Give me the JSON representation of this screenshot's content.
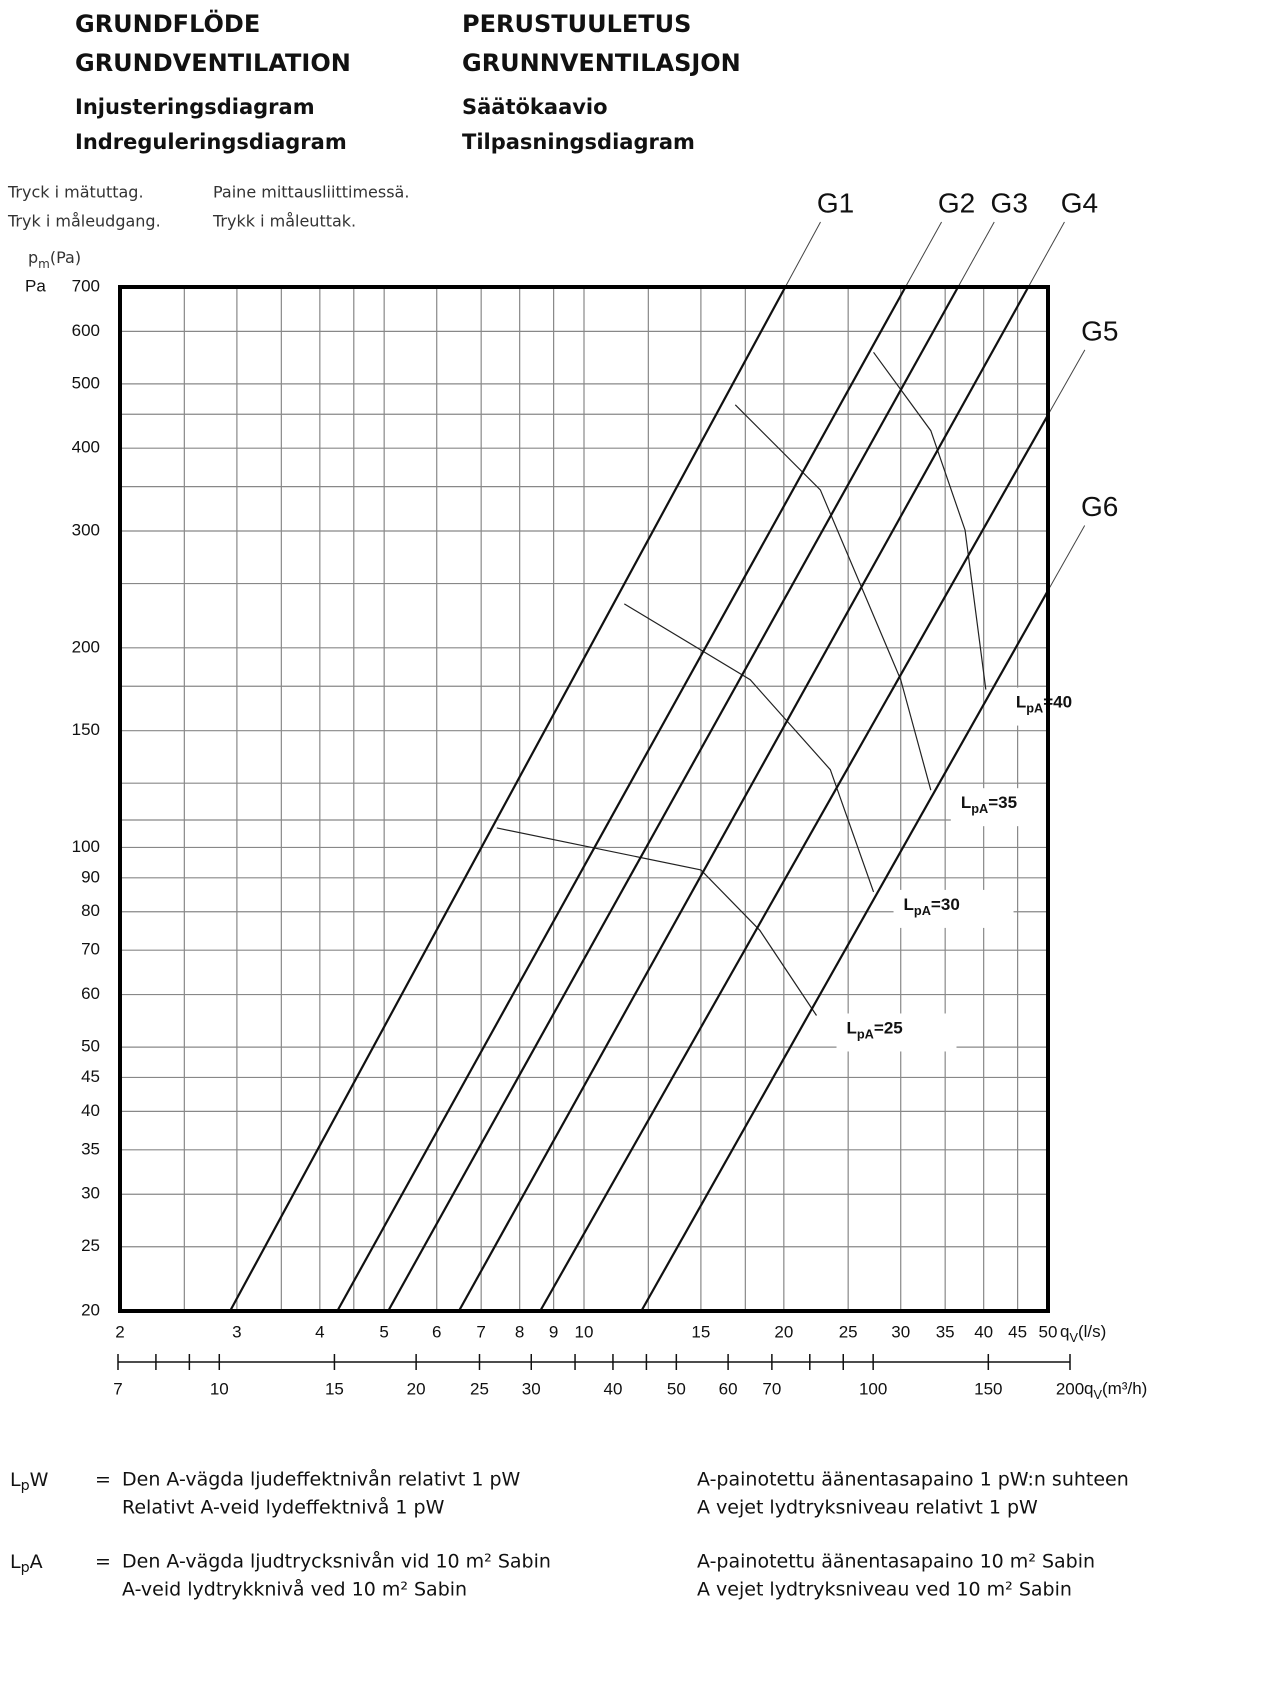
{
  "header": {
    "left": [
      "GRUNDFLÖDE",
      "GRUNDVENTILATION"
    ],
    "left_sub": [
      "Injusteringsdiagram",
      "Indreguleringsdiagram"
    ],
    "right": [
      "PERUSTUULETUS",
      "GRUNNVENTILASJON"
    ],
    "right_sub": [
      "Säätökaavio",
      "Tilpasningsdiagram"
    ]
  },
  "chart_data": {
    "type": "line",
    "log_x": true,
    "log_y": true,
    "grid": true,
    "y_label_lines": [
      "Tryck i mätuttag.",
      "Tryk i måleudgang."
    ],
    "y_label_lines_2": [
      "Paine mittausliittimessä.",
      "Trykk i måleuttak."
    ],
    "y_unit_symbol": "p",
    "y_unit_sub": "m",
    "y_unit": "(Pa)",
    "y_unit_short": "Pa",
    "x_label_symbol": "q",
    "x_label_sub": "V",
    "x_label_unit": "(l/s)",
    "x2_label_unit": "(m³/h)",
    "xlim": [
      2,
      50
    ],
    "ylim": [
      20,
      700
    ],
    "xticks": [
      2,
      3,
      4,
      5,
      6,
      7,
      8,
      9,
      10,
      15,
      20,
      25,
      30,
      35,
      40,
      45,
      50
    ],
    "yticks": [
      20,
      25,
      30,
      35,
      40,
      45,
      50,
      60,
      70,
      80,
      90,
      100,
      150,
      200,
      300,
      400,
      500,
      600,
      700
    ],
    "x_minor_grid": [
      2.5,
      3.5,
      4.5,
      12.5,
      17.5
    ],
    "y_minor_grid": [
      110,
      125,
      175,
      250,
      350,
      450
    ],
    "x2lim": [
      7,
      200
    ],
    "x2ticks": [
      7,
      10,
      15,
      20,
      25,
      30,
      40,
      50,
      60,
      70,
      100,
      150,
      200
    ],
    "x2_minor_ticks": [
      8,
      9,
      35,
      45,
      80,
      90
    ],
    "series": [
      {
        "name": "G1",
        "color": "#111111",
        "x": [
          2.93,
          20.1
        ],
        "values": [
          20,
          700
        ]
      },
      {
        "name": "G2",
        "color": "#111111",
        "x": [
          4.25,
          30.5
        ],
        "values": [
          20,
          700
        ]
      },
      {
        "name": "G3",
        "color": "#111111",
        "x": [
          5.07,
          36.6
        ],
        "values": [
          20,
          700
        ]
      },
      {
        "name": "G4",
        "color": "#111111",
        "x": [
          6.48,
          46.7
        ],
        "values": [
          20,
          700
        ]
      },
      {
        "name": "G5",
        "color": "#111111",
        "x": [
          8.59,
          50
        ],
        "values": [
          20,
          449
        ]
      },
      {
        "name": "G6",
        "color": "#111111",
        "x": [
          12.2,
          50
        ],
        "values": [
          20,
          244
        ]
      }
    ],
    "level_curves": {
      "symbol": "L",
      "subscript": "pA",
      "sign": "=",
      "curves": [
        {
          "level": 25,
          "x": [
            7.39,
            15.0,
            18.4,
            22.4
          ],
          "values": [
            107,
            92.5,
            75,
            55.8
          ]
        },
        {
          "level": 30,
          "x": [
            11.5,
            17.8,
            23.5,
            27.3
          ],
          "values": [
            233,
            179,
            131,
            85.7
          ]
        },
        {
          "level": 35,
          "x": [
            16.9,
            22.7,
            30.0,
            33.3
          ],
          "values": [
            465,
            346,
            179,
            122
          ]
        },
        {
          "level": 40,
          "x": [
            27.3,
            33.3,
            37.5,
            40.3
          ],
          "values": [
            558,
            425,
            301,
            173
          ]
        }
      ]
    }
  },
  "footer": [
    {
      "symbol": "L",
      "sub": "p",
      "suffix": "W",
      "sign": "=",
      "left": [
        "Den A-vägda ljudeffektnivån relativt 1 pW",
        "Relativt A-veid lydeffektnivå 1 pW"
      ],
      "right": [
        "A-painotettu äänentasapaino 1 pW:n suhteen",
        "A vejet lydtryksniveau relativt 1 pW"
      ]
    },
    {
      "symbol": "L",
      "sub": "p",
      "suffix": "A",
      "sign": "=",
      "left": [
        "Den A-vägda ljudtrycksnivån vid 10 m² Sabin",
        "A-veid lydtrykknivå ved 10 m² Sabin"
      ],
      "right": [
        "A-painotettu äänentasapaino 10 m² Sabin",
        "A vejet lydtryksniveau ved 10 m² Sabin"
      ]
    }
  ]
}
